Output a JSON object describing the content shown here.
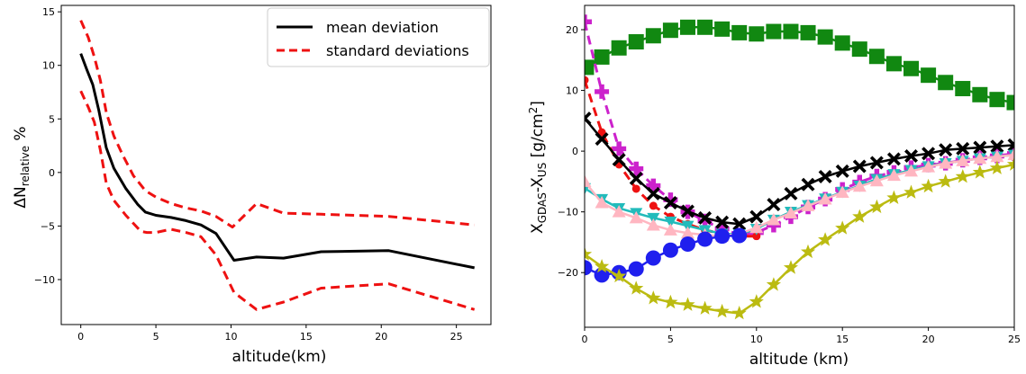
{
  "chart_data": [
    {
      "type": "line",
      "title": "",
      "xlabel": "altitude(km)",
      "ylabel": {
        "main": "ΔN",
        "sub": "relative",
        "suffix": " %"
      },
      "xlim": [
        -1.3,
        27.3
      ],
      "ylim": [
        -14.2,
        15.6
      ],
      "xticks": [
        0,
        5,
        10,
        15,
        20,
        25
      ],
      "yticks": [
        15,
        10,
        5,
        0,
        -5,
        -10
      ],
      "ytick_labels": [
        "15",
        "10",
        "5",
        "0",
        "−5",
        "−10"
      ],
      "grid": false,
      "legend": "top-right",
      "series": [
        {
          "name": "mean deviation",
          "color": "#000000",
          "style": "solid",
          "x": [
            0,
            0.4,
            0.8,
            1.2,
            1.7,
            2.2,
            3.0,
            3.8,
            4.3,
            5.0,
            6.0,
            7.0,
            8.0,
            9.0,
            10.2,
            11.7,
            13.5,
            16.0,
            20.5,
            26.2
          ],
          "y": [
            11.1,
            9.6,
            8.2,
            5.8,
            2.3,
            0.4,
            -1.5,
            -3.0,
            -3.7,
            -4.0,
            -4.2,
            -4.5,
            -4.9,
            -5.7,
            -8.2,
            -7.9,
            -8.0,
            -7.4,
            -7.3,
            -8.9
          ]
        },
        {
          "name": "standard deviations",
          "color": "#ee1111",
          "style": "dashed",
          "x": [
            0,
            0.5,
            0.9,
            1.3,
            1.7,
            2.2,
            2.8,
            3.5,
            4.3,
            5.0,
            6.0,
            7.0,
            8.0,
            9.0,
            10.1,
            11.7,
            13.5,
            16.0,
            20.5,
            26.2
          ],
          "y": [
            14.2,
            12.6,
            10.8,
            8.6,
            5.6,
            3.4,
            1.6,
            -0.3,
            -1.7,
            -2.3,
            -2.9,
            -3.3,
            -3.6,
            -4.1,
            -5.1,
            -2.9,
            -3.8,
            -3.9,
            -4.1,
            -4.9
          ]
        },
        {
          "name": "",
          "color": "#ee1111",
          "style": "dashed",
          "x": [
            0,
            0.5,
            0.9,
            1.3,
            1.7,
            2.2,
            3.0,
            4.0,
            4.4,
            5.0,
            6.0,
            7.0,
            8.0,
            9.0,
            10.2,
            11.7,
            13.5,
            16.0,
            20.5,
            26.2
          ],
          "y": [
            7.6,
            6.1,
            4.7,
            2.1,
            -1.0,
            -2.6,
            -4.0,
            -5.5,
            -5.6,
            -5.6,
            -5.3,
            -5.6,
            -6.0,
            -7.7,
            -11.2,
            -12.8,
            -12.1,
            -10.8,
            -10.4,
            -12.8
          ]
        }
      ]
    },
    {
      "type": "scatter",
      "title": "",
      "xlabel": "altitude (km)",
      "ylabel": {
        "main": "X",
        "sub1": "GDAS",
        "mid": "-X",
        "sub2": "US",
        "suffix": " [g/cm",
        "sup": "2",
        "end": "]"
      },
      "xlim": [
        0,
        25
      ],
      "ylim": [
        -29,
        24
      ],
      "xticks": [
        0,
        5,
        10,
        15,
        20,
        25
      ],
      "yticks": [
        20,
        10,
        0,
        -10,
        -20
      ],
      "ytick_labels": [
        "20",
        "10",
        "0",
        "−10",
        "−20"
      ],
      "grid": false,
      "series": [
        {
          "name": "",
          "color": "#118811",
          "marker": "square",
          "size": 17,
          "dashed": false,
          "x": [
            0.1,
            1.0,
            2.0,
            3.0,
            4.0,
            5.0,
            6.0,
            7.0,
            8.0,
            9.0,
            10.0,
            11.0,
            12.0,
            13.0,
            14.0,
            15.0,
            16.0,
            17.0,
            18.0,
            19.0,
            20.0,
            21.0,
            22.0,
            23.0,
            24.0,
            25.0
          ],
          "y": [
            13.8,
            15.5,
            17.0,
            18.0,
            19.0,
            19.9,
            20.4,
            20.4,
            20.1,
            19.5,
            19.3,
            19.7,
            19.7,
            19.5,
            18.8,
            17.8,
            16.8,
            15.6,
            14.4,
            13.6,
            12.5,
            11.3,
            10.3,
            9.3,
            8.5,
            8.0
          ]
        },
        {
          "name": "",
          "color": "#cc22cc",
          "marker": "plus",
          "size": 16,
          "dashed": true,
          "x": [
            0,
            1,
            2,
            3,
            4,
            5,
            6,
            7,
            8,
            9,
            10,
            11,
            12,
            13,
            14,
            15,
            16,
            17,
            18,
            19,
            20,
            21,
            22,
            23,
            24,
            25
          ],
          "y": [
            21.3,
            9.8,
            0.4,
            -2.9,
            -5.7,
            -8.0,
            -10.0,
            -11.5,
            -12.8,
            -13.8,
            -13.4,
            -12.2,
            -10.8,
            -9.2,
            -7.9,
            -6.3,
            -5.1,
            -4.1,
            -3.5,
            -2.7,
            -2.3,
            -2.0,
            -1.5,
            -1.1,
            -0.8,
            -0.4
          ]
        },
        {
          "name": "",
          "color": "#ee1111",
          "marker": "circle-small",
          "size": 9,
          "dashed": true,
          "x": [
            0,
            1,
            2,
            3,
            4,
            5,
            6,
            7,
            8,
            9,
            10
          ],
          "y": [
            11.7,
            3.1,
            -2.2,
            -6.2,
            -9.0,
            -10.8,
            -12.0,
            -13.0,
            -13.6,
            -14.0,
            -14.0
          ]
        },
        {
          "name": "",
          "color": "#000000",
          "marker": "x",
          "size": 15,
          "dashed": false,
          "x": [
            0,
            1,
            2,
            3,
            4,
            5,
            6,
            7,
            8,
            9,
            10,
            11,
            12,
            13,
            14,
            15,
            16,
            17,
            18,
            19,
            20,
            21,
            22,
            23,
            24,
            25
          ],
          "y": [
            5.4,
            2.0,
            -1.4,
            -4.5,
            -7.0,
            -8.5,
            -9.9,
            -11.0,
            -11.7,
            -12.0,
            -10.8,
            -8.8,
            -7.0,
            -5.5,
            -4.2,
            -3.3,
            -2.5,
            -1.9,
            -1.3,
            -0.8,
            -0.4,
            0.2,
            0.4,
            0.6,
            0.8,
            1.0
          ]
        },
        {
          "name": "",
          "color": "#22bbbb",
          "marker": "triangle-down",
          "size": 14,
          "dashed": false,
          "x": [
            0,
            1,
            2,
            3,
            4,
            5,
            6,
            7,
            8,
            9,
            10,
            11,
            12,
            13,
            14,
            15,
            16,
            17,
            18,
            19,
            20,
            21,
            22,
            23,
            24,
            25
          ],
          "y": [
            -6.1,
            -7.9,
            -9.4,
            -10.2,
            -11.0,
            -11.6,
            -12.3,
            -13.0,
            -13.6,
            -13.7,
            -12.8,
            -11.3,
            -10.0,
            -8.9,
            -7.8,
            -6.7,
            -5.7,
            -4.6,
            -3.8,
            -3.1,
            -2.5,
            -2.0,
            -1.6,
            -1.2,
            -0.9,
            -0.6
          ]
        },
        {
          "name": "",
          "color": "#ffb6c1",
          "marker": "triangle-up",
          "size": 15,
          "dashed": false,
          "x": [
            0,
            1,
            2,
            3,
            4,
            5,
            6,
            7,
            8,
            9,
            10,
            11,
            12,
            13,
            14,
            15,
            16,
            17,
            18,
            19,
            20,
            21,
            22,
            23,
            24,
            25
          ],
          "y": [
            -5.0,
            -8.5,
            -10.0,
            -11.0,
            -12.2,
            -13.0,
            -13.5,
            -13.8,
            -14.0,
            -13.6,
            -12.6,
            -11.3,
            -10.2,
            -9.0,
            -7.9,
            -6.8,
            -5.8,
            -4.9,
            -4.0,
            -3.3,
            -2.6,
            -2.0,
            -1.6,
            -1.2,
            -0.9,
            -0.6
          ]
        },
        {
          "name": "",
          "color": "#1f1fee",
          "marker": "circle",
          "size": 17,
          "dashed": false,
          "x": [
            0,
            1,
            2,
            3,
            4,
            5,
            6,
            7,
            8,
            9
          ],
          "y": [
            -19.2,
            -20.4,
            -20.0,
            -19.4,
            -17.6,
            -16.3,
            -15.3,
            -14.5,
            -14.0,
            -13.9
          ]
        },
        {
          "name": "",
          "color": "#bbbb11",
          "marker": "star",
          "size": 17,
          "dashed": false,
          "x": [
            0,
            1,
            2,
            3,
            4,
            5,
            6,
            7,
            8,
            9,
            10,
            11,
            12,
            13,
            14,
            15,
            16,
            17,
            18,
            19,
            20,
            21,
            22,
            23,
            24,
            25
          ],
          "y": [
            -17.0,
            -19.0,
            -20.6,
            -22.6,
            -24.2,
            -24.9,
            -25.3,
            -25.9,
            -26.4,
            -26.7,
            -24.8,
            -22.0,
            -19.2,
            -16.6,
            -14.6,
            -12.7,
            -10.8,
            -9.2,
            -7.7,
            -6.8,
            -5.8,
            -5.0,
            -4.2,
            -3.5,
            -2.8,
            -2.2
          ]
        }
      ]
    }
  ]
}
